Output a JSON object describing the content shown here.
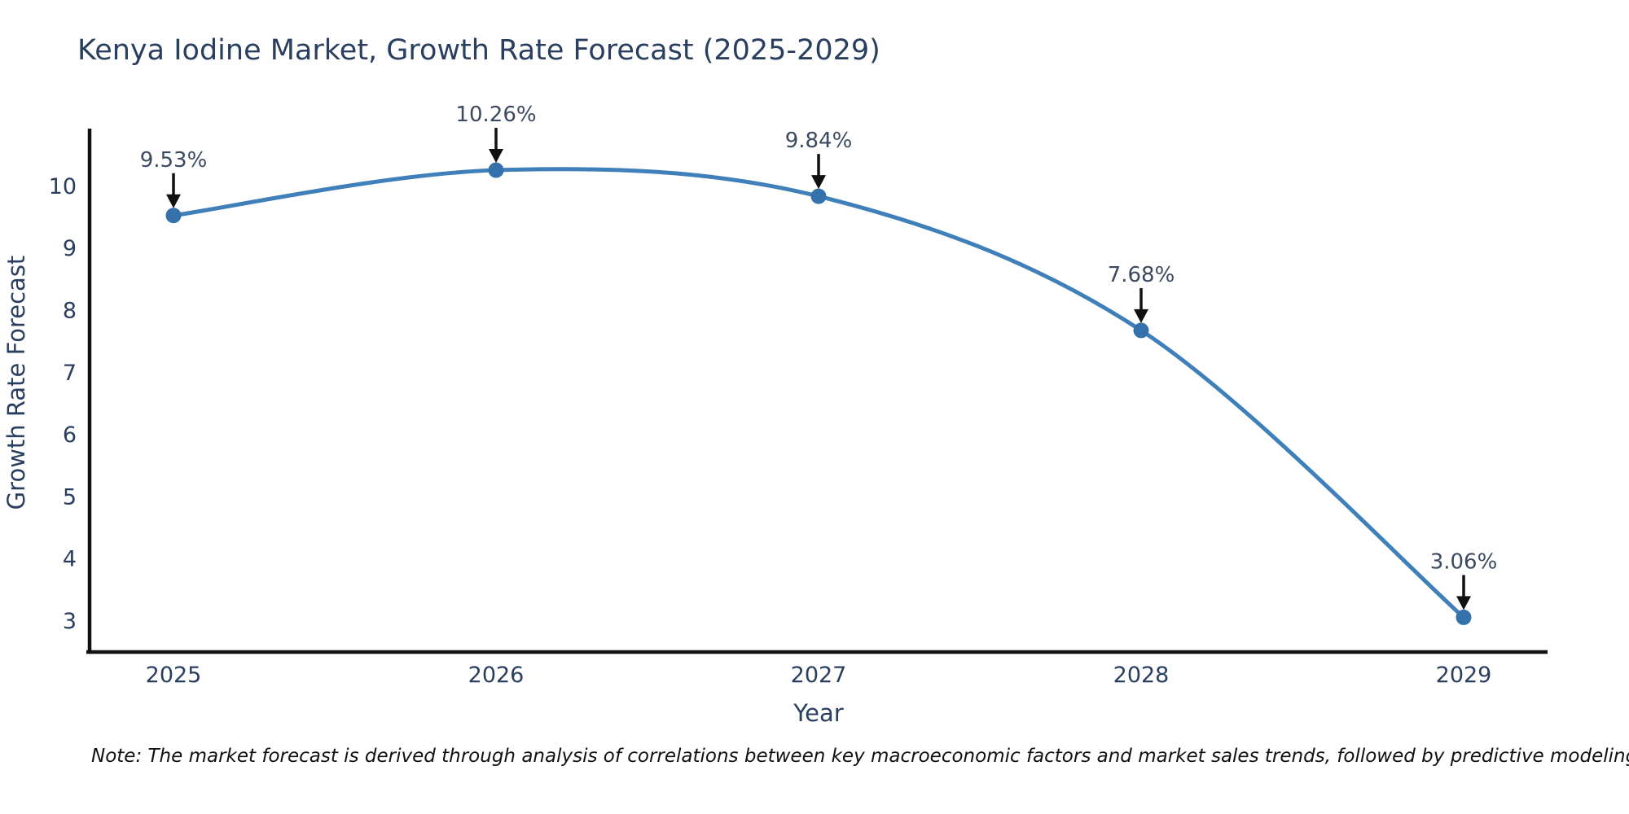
{
  "title": "Kenya Iodine Market, Growth Rate Forecast (2025-2029)",
  "note": "Note: The market forecast is derived through analysis of correlations between key macroeconomic factors and market sales trends, followed by predictive modeling to project future sales",
  "colors": {
    "line": "#3f7fba",
    "marker": "#3572ab",
    "axis": "#111111",
    "text": "#2a3f5f",
    "annotation_text": "#3b4a5f",
    "arrow": "#111111"
  },
  "chart_data": {
    "type": "line",
    "title": "Kenya Iodine Market, Growth Rate Forecast (2025-2029)",
    "xlabel": "Year",
    "ylabel": "Growth Rate Forecast",
    "x": [
      2025,
      2026,
      2027,
      2028,
      2029
    ],
    "categories": [
      "2025",
      "2026",
      "2027",
      "2028",
      "2029"
    ],
    "values": [
      9.53,
      10.26,
      9.84,
      7.68,
      3.06
    ],
    "point_labels": [
      "9.53%",
      "10.26%",
      "9.84%",
      "7.68%",
      "3.06%"
    ],
    "yticks": [
      3,
      4,
      5,
      6,
      7,
      8,
      9,
      10
    ],
    "ylim": [
      2.9,
      10.8
    ],
    "grid": false,
    "legend": "none",
    "line_shape": "spline",
    "annotations": "arrow-down-to-point"
  }
}
